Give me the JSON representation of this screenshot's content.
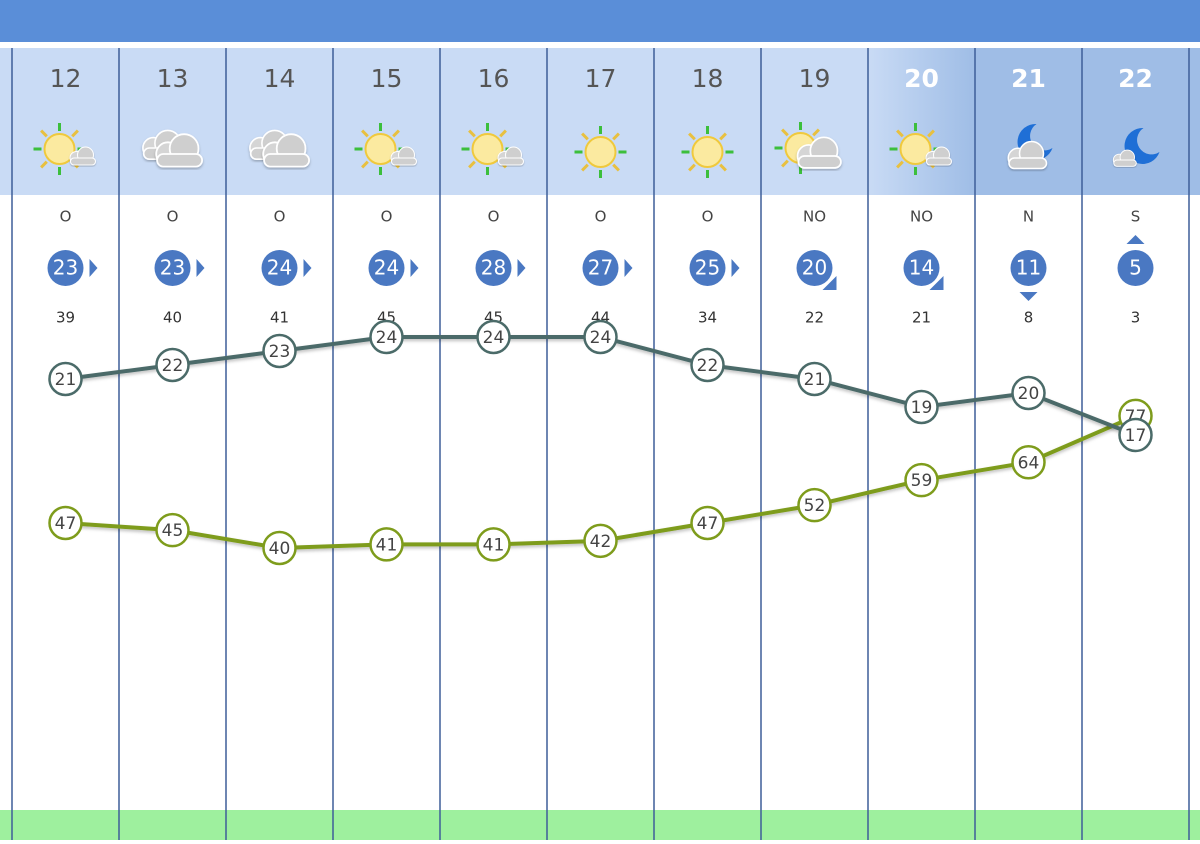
{
  "hours": [
    12,
    13,
    14,
    15,
    16,
    17,
    18,
    19,
    20,
    21,
    22
  ],
  "wind_direction": [
    "O",
    "O",
    "O",
    "O",
    "O",
    "O",
    "O",
    "NO",
    "NO",
    "N",
    "S"
  ],
  "wind_speed": [
    23,
    23,
    24,
    24,
    28,
    27,
    25,
    20,
    14,
    11,
    5
  ],
  "gusts": [
    39,
    40,
    41,
    45,
    45,
    44,
    34,
    22,
    21,
    8,
    3
  ],
  "temperature": [
    21,
    22,
    23,
    24,
    24,
    24,
    22,
    21,
    19,
    20,
    17
  ],
  "humidity": [
    47,
    45,
    40,
    41,
    41,
    42,
    47,
    52,
    59,
    64,
    77
  ]
}
